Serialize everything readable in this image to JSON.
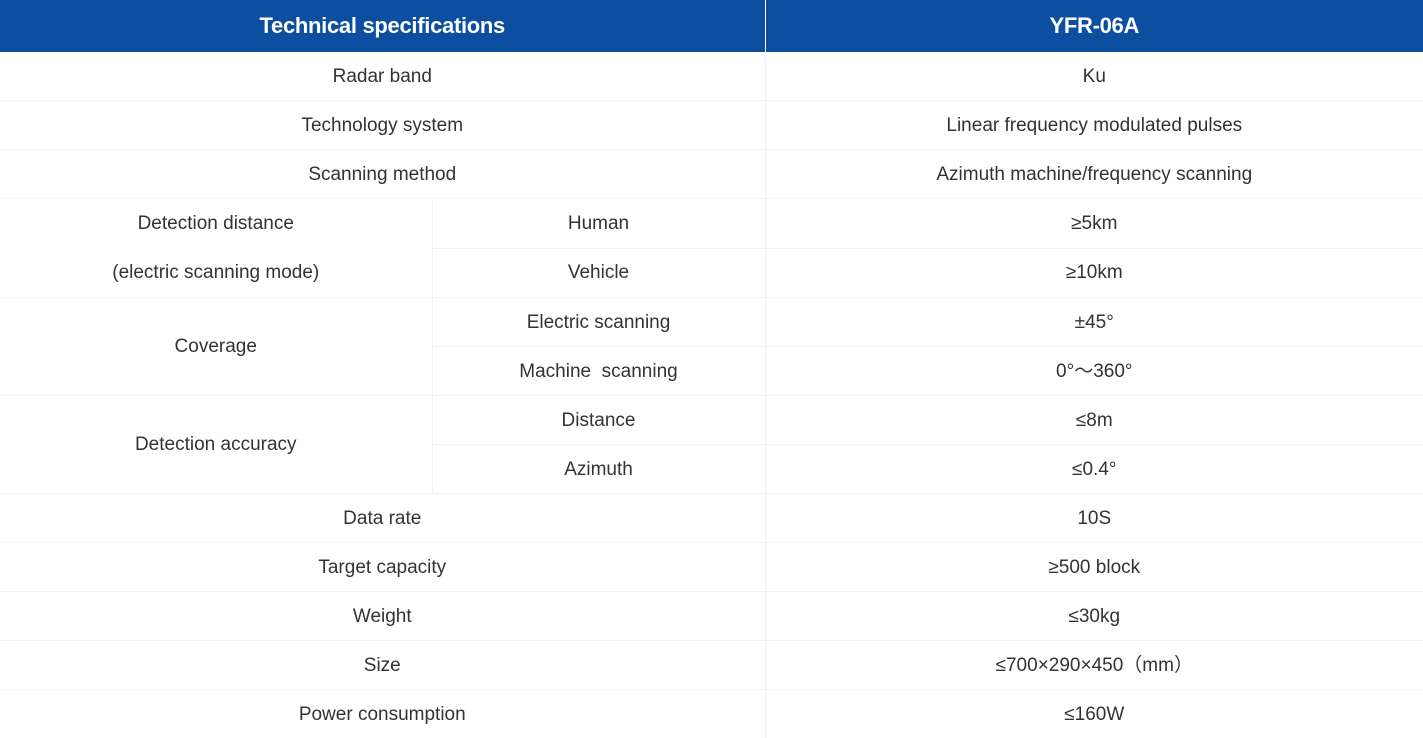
{
  "header": {
    "col1": "Technical specifications",
    "col2": "YFR-06A"
  },
  "rows": {
    "radar_band": {
      "label": "Radar band",
      "value": "Ku"
    },
    "technology_system": {
      "label": "Technology system",
      "value": "Linear frequency modulated pulses"
    },
    "scanning_method": {
      "label": "Scanning method",
      "value": "Azimuth machine/frequency scanning"
    },
    "detection_distance": {
      "label_line1": "Detection distance",
      "label_line2": "(electric scanning mode)",
      "human": {
        "label": "Human",
        "value": "≥5km"
      },
      "vehicle": {
        "label": "Vehicle",
        "value": "≥10km"
      }
    },
    "coverage": {
      "label": "Coverage",
      "electric": {
        "label": "Electric scanning",
        "value": "±45°"
      },
      "machine": {
        "label": "Machine  scanning",
        "value": "0°～360°"
      }
    },
    "detection_accuracy": {
      "label": "Detection accuracy",
      "distance": {
        "label": "Distance",
        "value": "≤8m"
      },
      "azimuth": {
        "label": "Azimuth",
        "value": "≤0.4°"
      }
    },
    "data_rate": {
      "label": "Data rate",
      "value": "10S"
    },
    "target_capacity": {
      "label": "Target capacity",
      "value": "≥500 block"
    },
    "weight": {
      "label": "Weight",
      "value": "≤30kg"
    },
    "size": {
      "label": "Size",
      "value": "≤700×290×450（mm）"
    },
    "power_consumption": {
      "label": "Power consumption",
      "value": "≤160W"
    }
  },
  "colors": {
    "header_bg": "#0c4fa0",
    "header_text": "#ffffff",
    "body_text": "#333333",
    "border": "#eef0f3"
  }
}
